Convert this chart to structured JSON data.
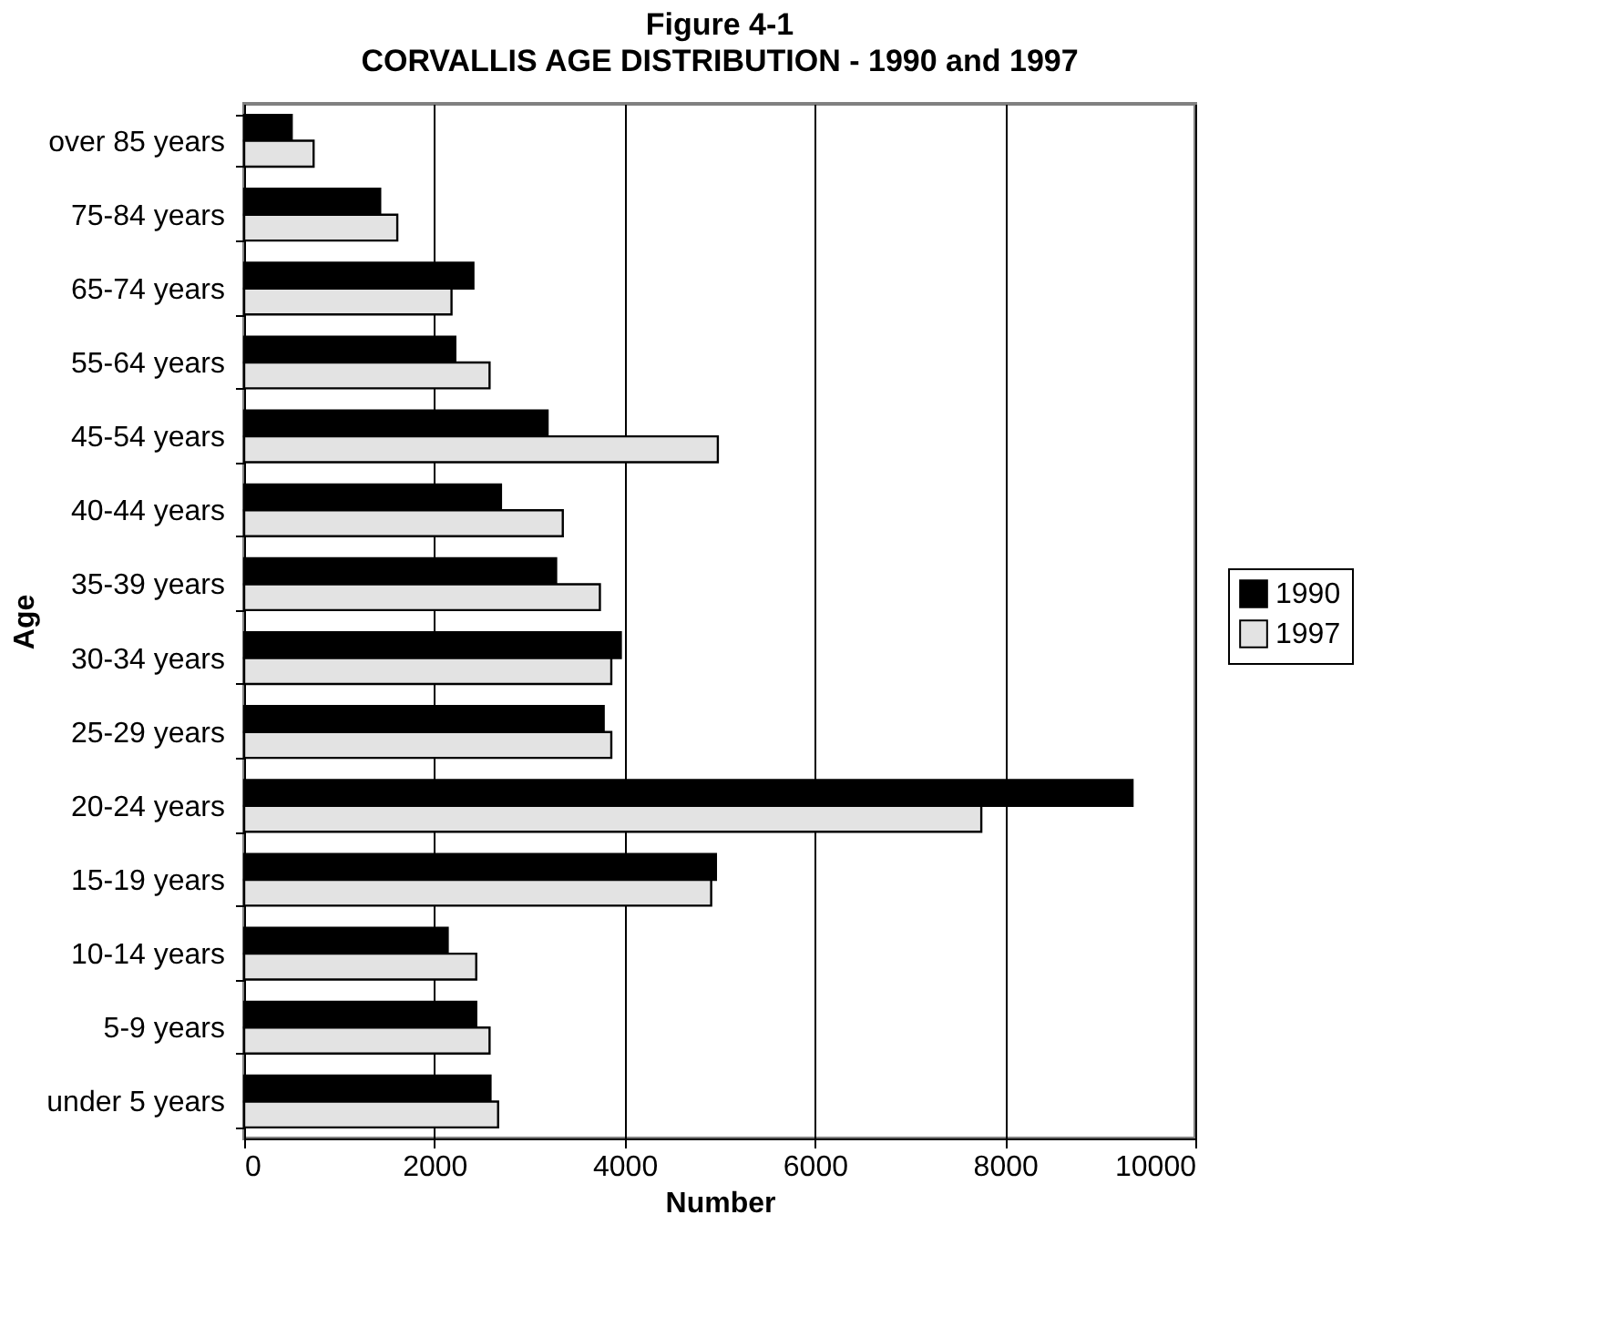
{
  "chart_data": {
    "type": "bar",
    "orientation": "horizontal",
    "title": "Figure 4-1",
    "subtitle": "CORVALLIS AGE DISTRIBUTION - 1990 and 1997",
    "xlabel": "Number",
    "ylabel": "Age",
    "categories": [
      "over 85 years",
      "75-84 years",
      "65-74 years",
      "55-64 years",
      "45-54 years",
      "40-44 years",
      "35-39 years",
      "30-34 years",
      "25-29 years",
      "20-24 years",
      "15-19 years",
      "10-14 years",
      "5-9 years",
      "under 5 years"
    ],
    "series": [
      {
        "name": "1990",
        "color": "#000000",
        "values": [
          500,
          1430,
          2410,
          2220,
          3190,
          2700,
          3280,
          3960,
          3780,
          9340,
          4960,
          2140,
          2440,
          2590
        ]
      },
      {
        "name": "1997",
        "color": "#e3e3e3",
        "values": [
          730,
          1610,
          2180,
          2580,
          4980,
          3350,
          3740,
          3860,
          3860,
          7750,
          4910,
          2440,
          2580,
          2670
        ]
      }
    ],
    "xlim": [
      0,
      10000
    ],
    "xticks": [
      0,
      2000,
      4000,
      6000,
      8000,
      10000
    ],
    "grid": "x",
    "legend": "right"
  }
}
